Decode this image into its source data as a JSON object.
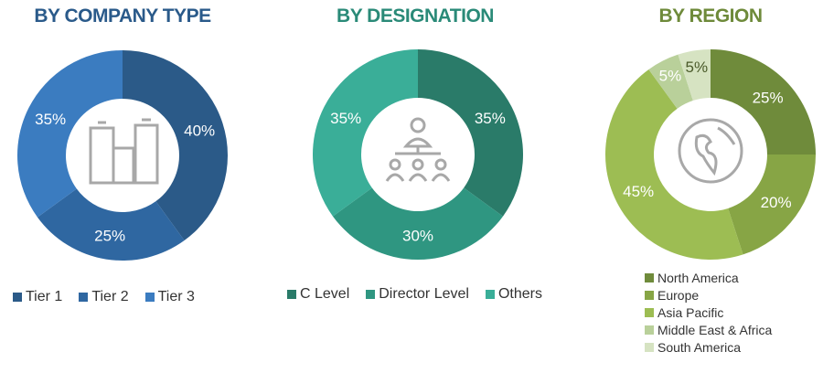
{
  "chart_data": [
    {
      "type": "pie",
      "title": "BY COMPANY TYPE",
      "title_color": "#2a5a8a",
      "icon": "buildings-icon",
      "categories": [
        "Tier 1",
        "Tier 2",
        "Tier 3"
      ],
      "values": [
        40,
        25,
        35
      ],
      "labels": [
        "40%",
        "25%",
        "35%"
      ],
      "colors": [
        "#2b5a88",
        "#2f67a1",
        "#3b7cc0"
      ],
      "legend": "bottom"
    },
    {
      "type": "pie",
      "title": "BY DESIGNATION",
      "title_color": "#2a8a78",
      "icon": "org-hierarchy-icon",
      "categories": [
        "C Level",
        "Director Level",
        "Others"
      ],
      "values": [
        35,
        30,
        35
      ],
      "labels": [
        "35%",
        "30%",
        "35%"
      ],
      "colors": [
        "#2a7b69",
        "#2f9681",
        "#3aae98"
      ],
      "legend": "bottom"
    },
    {
      "type": "pie",
      "title": "BY REGION",
      "title_color": "#6e8a3a",
      "icon": "globe-icon",
      "categories": [
        "North America",
        "Europe",
        "Asia Pacific",
        "Middle East & Africa",
        "South America"
      ],
      "values": [
        25,
        20,
        45,
        5,
        5
      ],
      "labels": [
        "25%",
        "20%",
        "45%",
        "5%",
        "5%"
      ],
      "colors": [
        "#6f8b3b",
        "#87a545",
        "#9dbd53",
        "#b9d09a",
        "#d6e3c2"
      ],
      "legend": "bottom"
    }
  ]
}
